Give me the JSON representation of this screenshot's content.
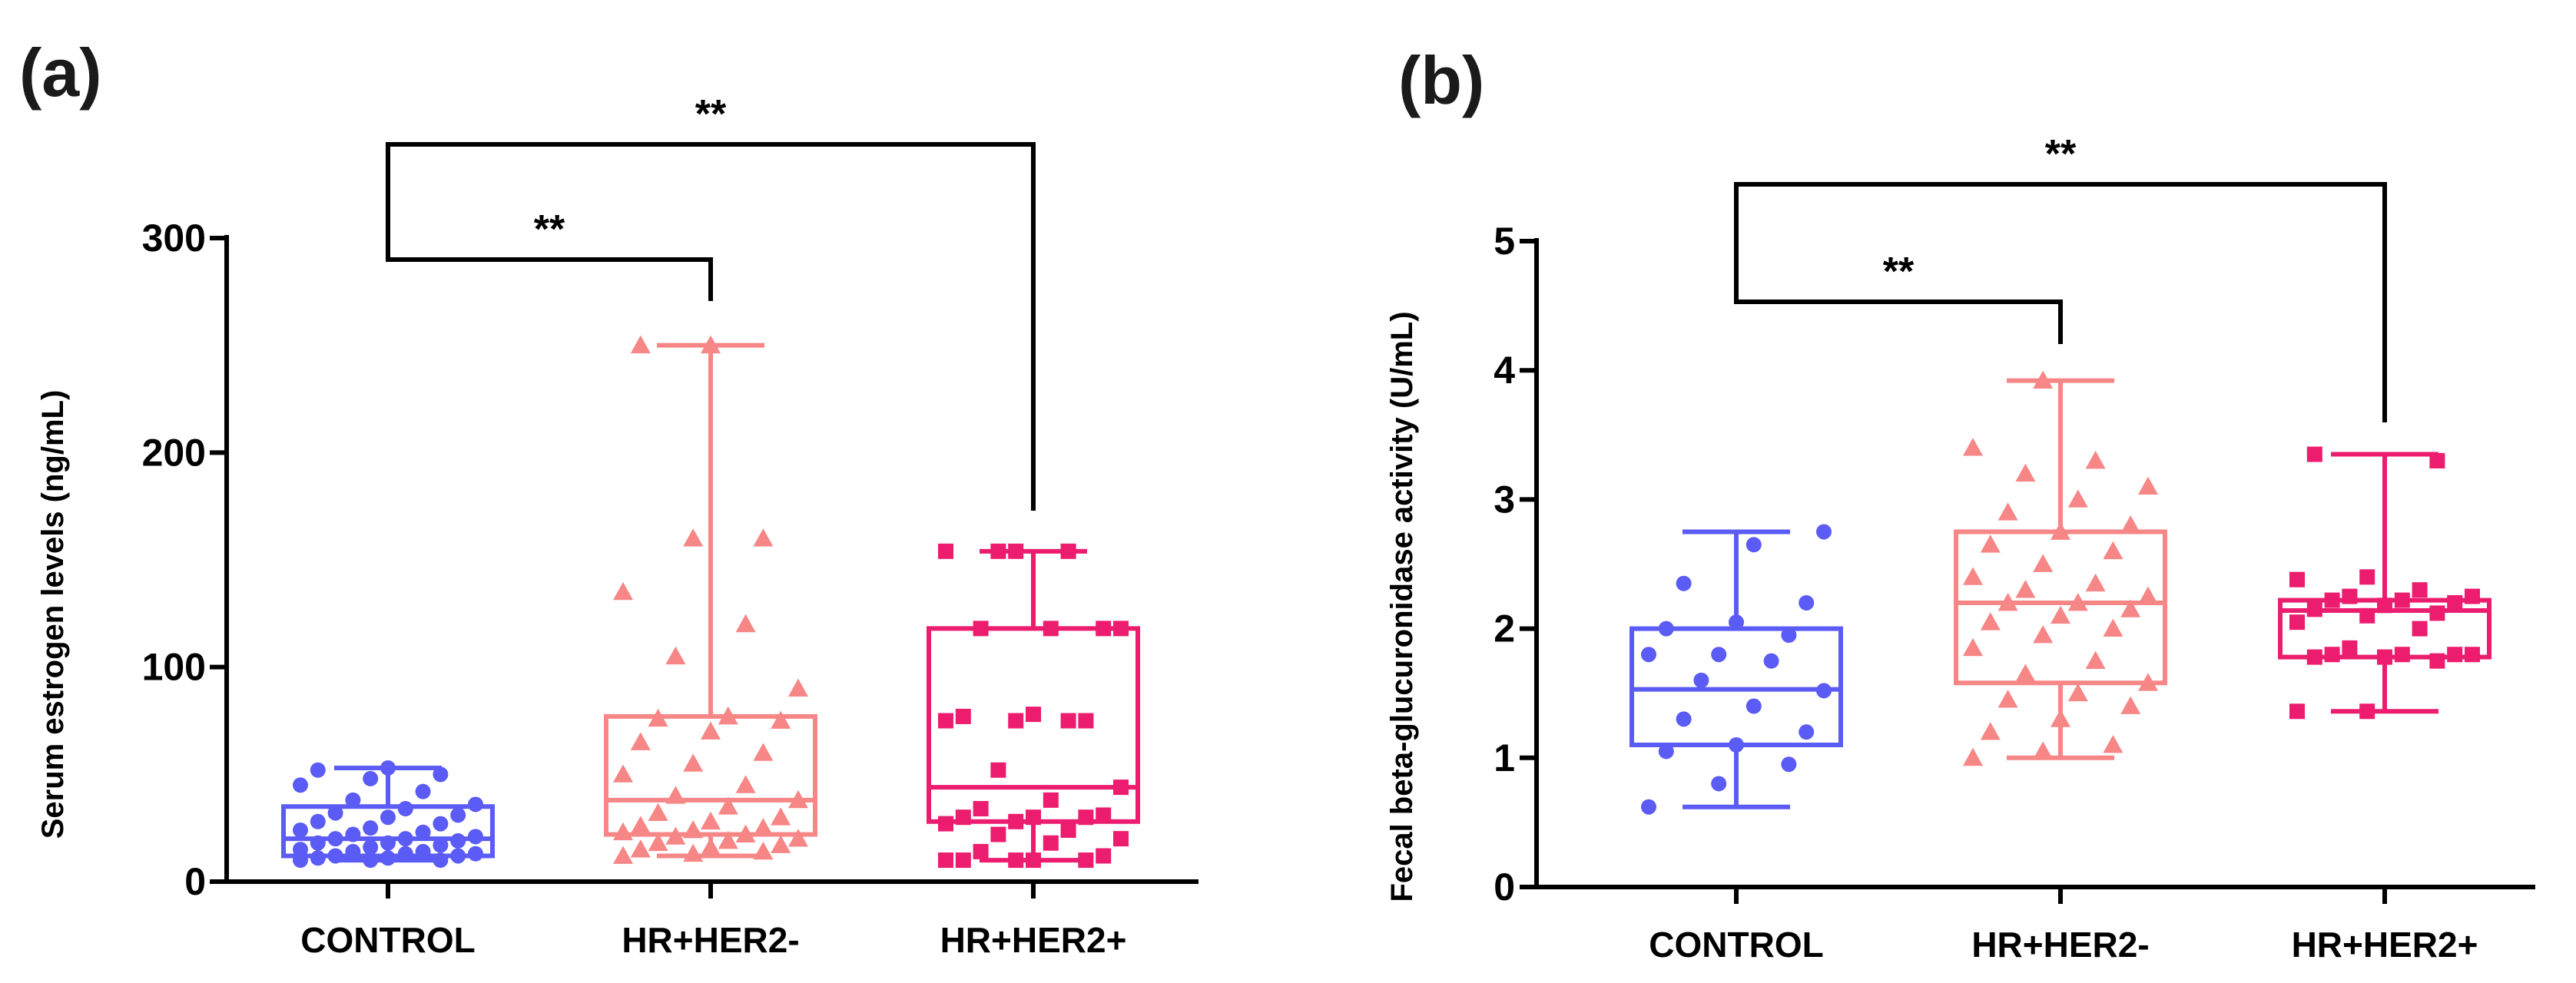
{
  "chart_data": [
    {
      "panel": "(a)",
      "type": "boxplot",
      "ylabel": "Serum estrogen levels (ng/mL)",
      "ylim": [
        0,
        300
      ],
      "yticks": [
        "0",
        "100",
        "200",
        "300"
      ],
      "yticks_values": [
        0,
        100,
        200,
        300
      ],
      "categories": [
        "CONTROL",
        "HR+HER2-",
        "HR+HER2+"
      ],
      "colors": [
        "#5b5bf5",
        "#f78686",
        "#ec1c6e"
      ],
      "markers": [
        "circle",
        "triangle",
        "square"
      ],
      "boxes": [
        {
          "min": 10,
          "q1": 12,
          "median": 20,
          "q3": 35,
          "max": 53
        },
        {
          "min": 12,
          "q1": 22,
          "median": 38,
          "q3": 77,
          "max": 250
        },
        {
          "min": 10,
          "q1": 28,
          "median": 44,
          "q3": 118,
          "max": 154
        }
      ],
      "points": [
        [
          10,
          10,
          10,
          11,
          11,
          12,
          12,
          13,
          13,
          14,
          14,
          15,
          16,
          17,
          18,
          18,
          19,
          20,
          20,
          21,
          22,
          23,
          24,
          25,
          27,
          28,
          30,
          31,
          32,
          34,
          36,
          38,
          42,
          45,
          48,
          50,
          52,
          53
        ],
        [
          12,
          13,
          14,
          15,
          16,
          17,
          18,
          19,
          20,
          21,
          22,
          23,
          24,
          25,
          26,
          28,
          30,
          32,
          35,
          38,
          40,
          45,
          50,
          55,
          60,
          65,
          70,
          75,
          76,
          77,
          90,
          105,
          120,
          135,
          160,
          160,
          250,
          250
        ],
        [
          10,
          10,
          10,
          10,
          10,
          12,
          14,
          18,
          20,
          22,
          24,
          27,
          28,
          30,
          30,
          30,
          31,
          34,
          38,
          44,
          52,
          75,
          75,
          75,
          75,
          77,
          78,
          118,
          118,
          118,
          118,
          154,
          154,
          154,
          154
        ]
      ],
      "significance": [
        {
          "from": 0,
          "to": 1,
          "label": "**"
        },
        {
          "from": 0,
          "to": 2,
          "label": "**"
        }
      ]
    },
    {
      "panel": "(b)",
      "type": "boxplot",
      "ylabel": "Fecal beta-glucuronidase activity (U/mL)",
      "ylim": [
        0,
        5
      ],
      "yticks": [
        "0",
        "1",
        "2",
        "3",
        "4",
        "5"
      ],
      "yticks_values": [
        0,
        1,
        2,
        3,
        4,
        5
      ],
      "categories": [
        "CONTROL",
        "HR+HER2-",
        "HR+HER2+"
      ],
      "colors": [
        "#5b5bf5",
        "#f78686",
        "#ec1c6e"
      ],
      "markers": [
        "circle",
        "triangle",
        "square"
      ],
      "boxes": [
        {
          "min": 0.62,
          "q1": 1.1,
          "median": 1.53,
          "q3": 2.0,
          "max": 2.75
        },
        {
          "min": 1.0,
          "q1": 1.58,
          "median": 2.2,
          "q3": 2.75,
          "max": 3.92
        },
        {
          "min": 1.36,
          "q1": 1.78,
          "median": 2.14,
          "q3": 2.22,
          "max": 3.35
        }
      ],
      "points": [
        [
          0.62,
          0.8,
          0.95,
          1.05,
          1.1,
          1.2,
          1.3,
          1.4,
          1.52,
          1.6,
          1.75,
          1.8,
          1.8,
          1.95,
          2.0,
          2.05,
          2.2,
          2.35,
          2.65,
          2.75
        ],
        [
          1.0,
          1.05,
          1.1,
          1.2,
          1.3,
          1.4,
          1.45,
          1.5,
          1.58,
          1.65,
          1.75,
          1.85,
          1.95,
          2.0,
          2.05,
          2.1,
          2.15,
          2.2,
          2.2,
          2.25,
          2.3,
          2.35,
          2.4,
          2.5,
          2.6,
          2.65,
          2.75,
          2.8,
          2.9,
          3.0,
          3.1,
          3.2,
          3.3,
          3.4,
          3.92
        ],
        [
          1.36,
          1.36,
          1.75,
          1.78,
          1.78,
          1.8,
          1.8,
          1.8,
          1.8,
          1.85,
          2.0,
          2.05,
          2.1,
          2.12,
          2.15,
          2.18,
          2.2,
          2.22,
          2.22,
          2.25,
          2.25,
          2.3,
          2.38,
          2.4,
          3.3,
          3.35
        ]
      ],
      "significance": [
        {
          "from": 0,
          "to": 1,
          "label": "**"
        },
        {
          "from": 0,
          "to": 2,
          "label": "**"
        }
      ]
    }
  ]
}
